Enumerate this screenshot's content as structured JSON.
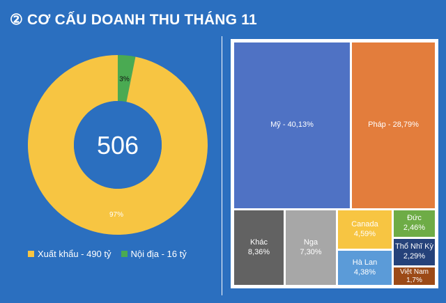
{
  "header": {
    "title": "② CƠ CẤU DOANH THU THÁNG 11"
  },
  "colors": {
    "background": "#2b6fbf",
    "xuat_khau": "#f7c542",
    "noi_dia": "#4aaa52"
  },
  "chart_data": [
    {
      "type": "pie",
      "variant": "donut",
      "center_label": "506",
      "slices": [
        {
          "name": "Xuất khẩu",
          "value": 490,
          "percent_label": "97%",
          "color": "#f7c542"
        },
        {
          "name": "Nội địa",
          "value": 16,
          "percent_label": "3%",
          "color": "#4aaa52"
        }
      ],
      "legend": {
        "position": "bottom",
        "entries": [
          "Xuất khẩu - 490 tỷ",
          "Nội địa - 16 tỷ"
        ]
      }
    },
    {
      "type": "treemap",
      "items": [
        {
          "name": "Mỹ",
          "value": 40.13,
          "label": "Mỹ - 40,13%",
          "color": "#4f72c4"
        },
        {
          "name": "Pháp",
          "value": 28.79,
          "label": "Pháp - 28,79%",
          "color": "#e37d3c"
        },
        {
          "name": "Khác",
          "value": 8.36,
          "line1": "Khác",
          "line2": "8,36%",
          "color": "#626262"
        },
        {
          "name": "Nga",
          "value": 7.3,
          "line1": "Nga",
          "line2": "7,30%",
          "color": "#a7a7a7"
        },
        {
          "name": "Canada",
          "value": 4.59,
          "line1": "Canada",
          "line2": "4,59%",
          "color": "#f7c542"
        },
        {
          "name": "Hà Lan",
          "value": 4.38,
          "line1": "Hà Lan",
          "line2": "4,38%",
          "color": "#5b9bd8"
        },
        {
          "name": "Đức",
          "value": 2.46,
          "line1": "Đức",
          "line2": "2,46%",
          "color": "#6eac46"
        },
        {
          "name": "Thổ Nhĩ Kỳ",
          "value": 2.29,
          "line1": "Thổ Nhĩ Kỳ",
          "line2": "2,29%",
          "color": "#25427a"
        },
        {
          "name": "Việt Nam",
          "value": 1.7,
          "line1": "Việt Nam",
          "line2": "1,7%",
          "color": "#9c4a17"
        }
      ]
    }
  ]
}
